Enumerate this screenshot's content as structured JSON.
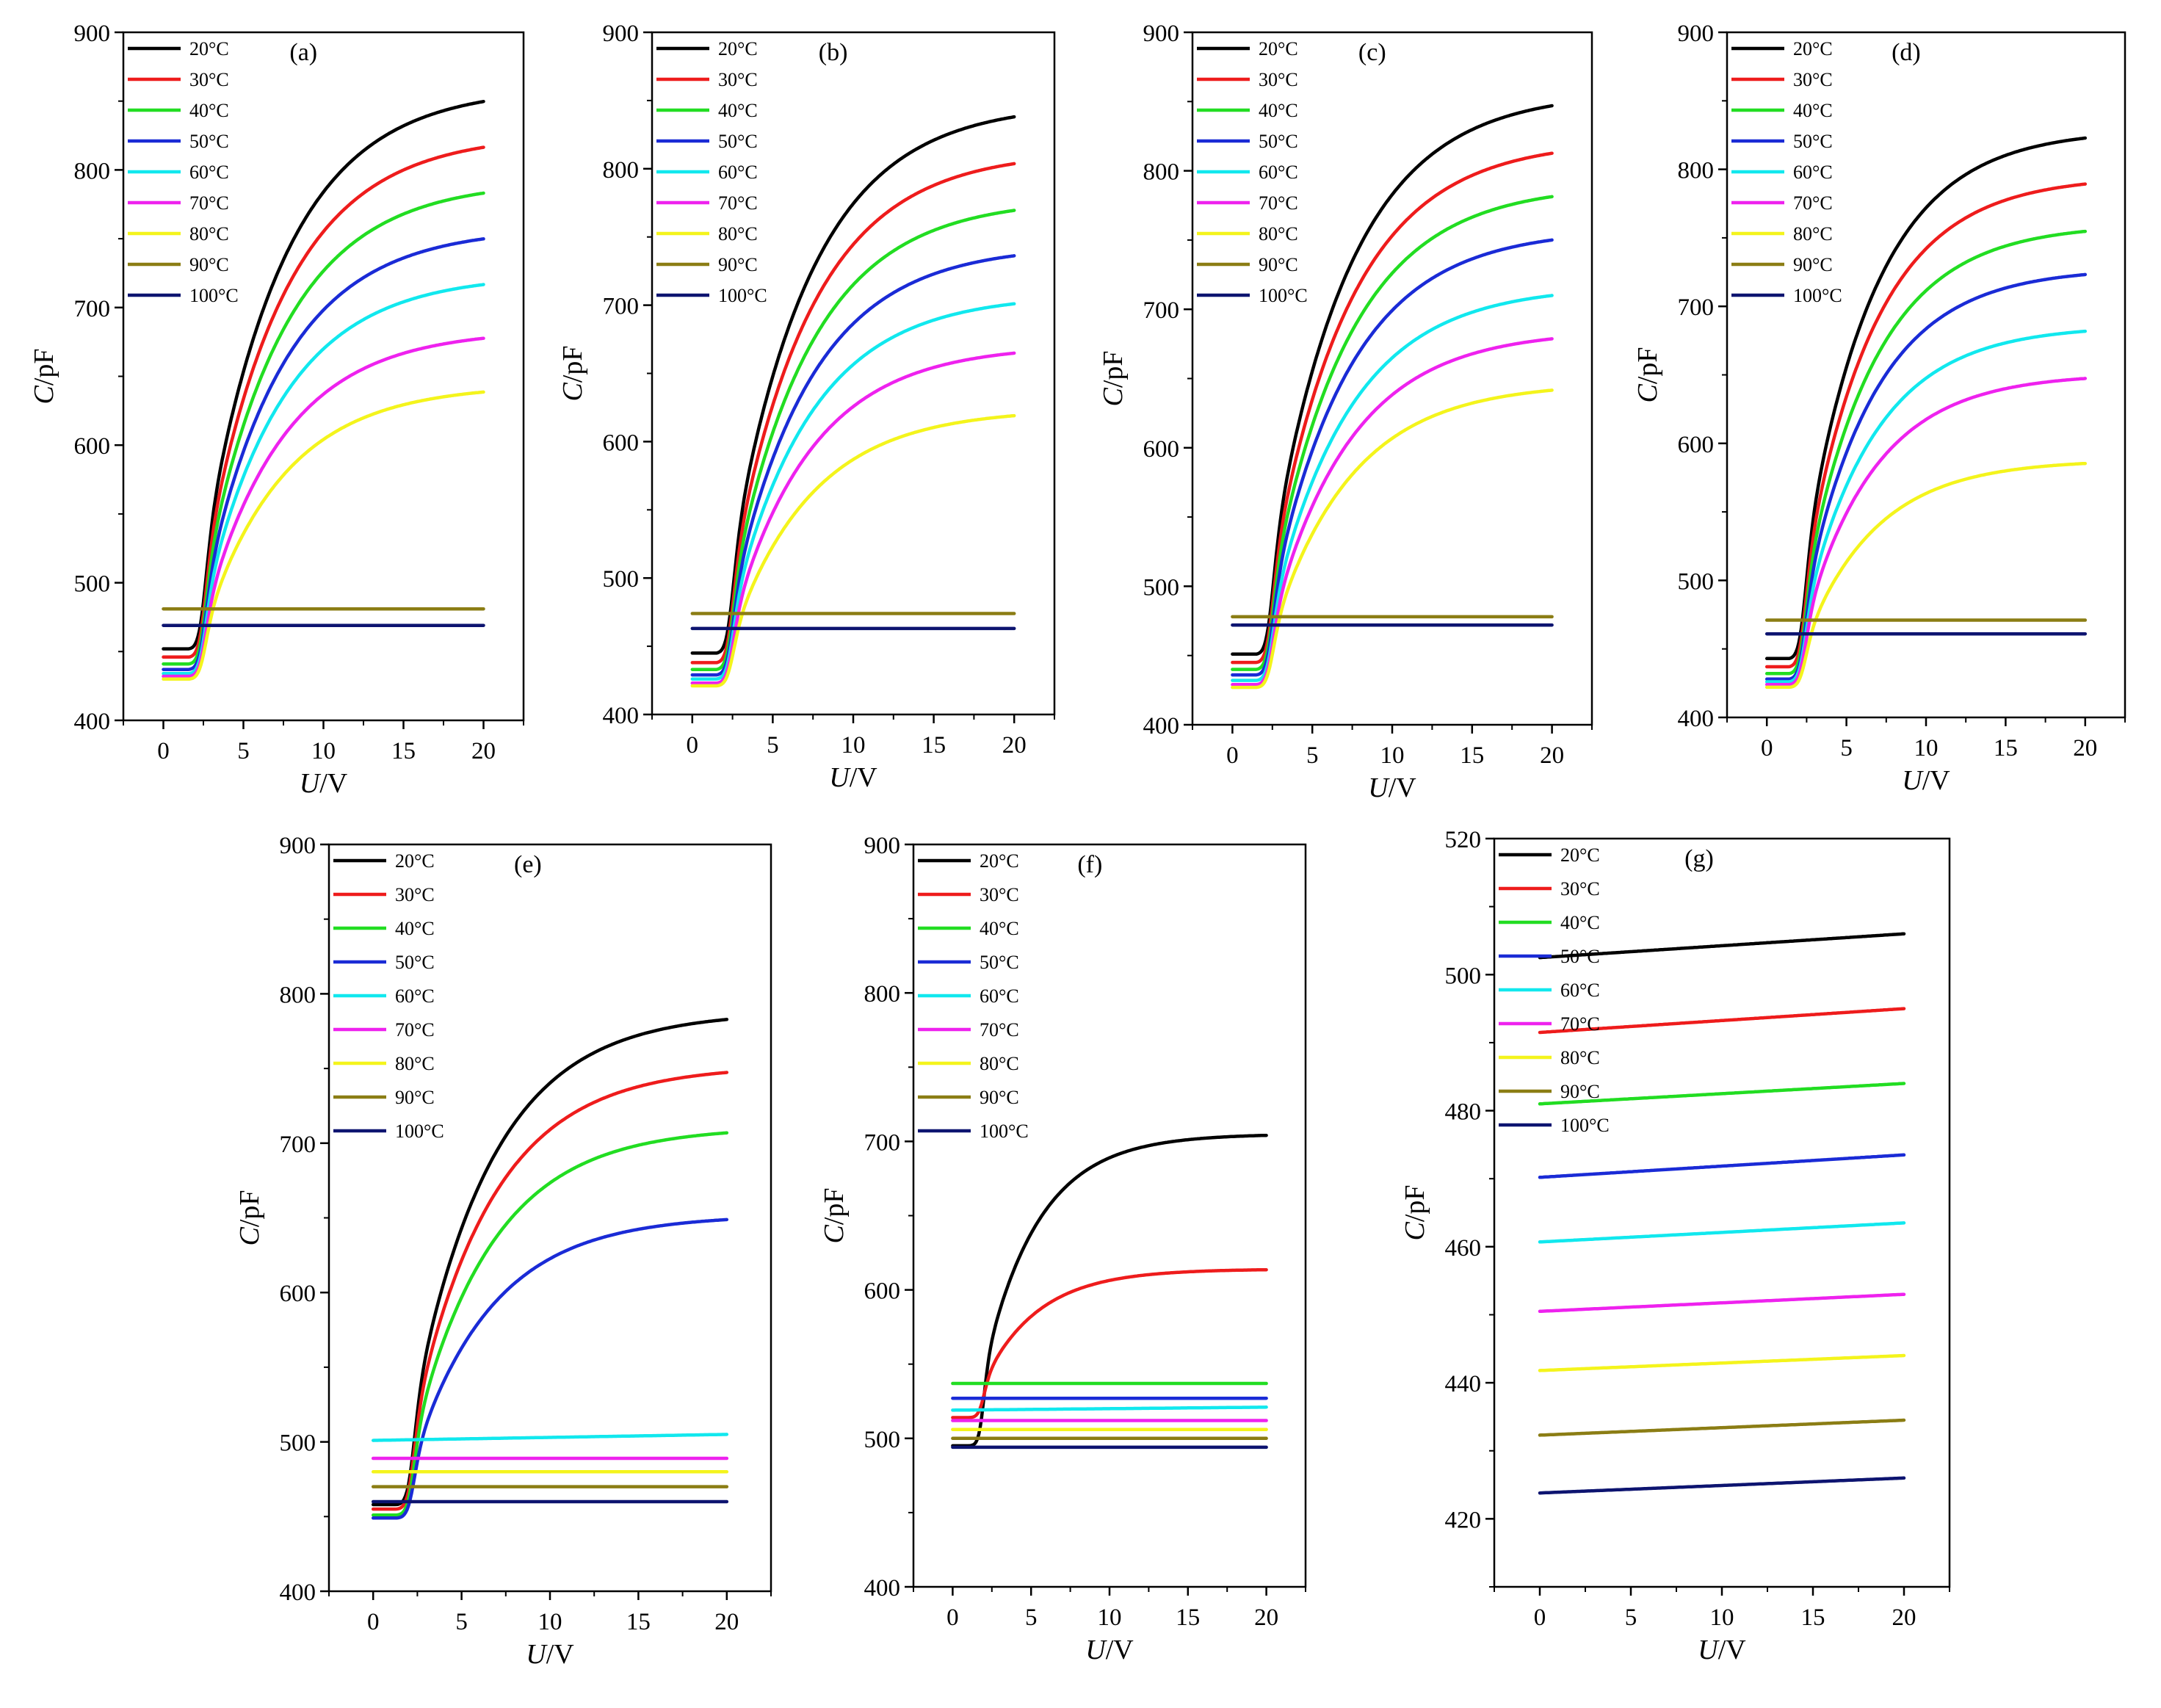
{
  "figure": {
    "legend_entries": [
      "20°C",
      "30°C",
      "40°C",
      "50°C",
      "60°C",
      "70°C",
      "80°C",
      "90°C",
      "100°C"
    ],
    "series_colors": [
      "#000000",
      "#ee1c1c",
      "#22dd22",
      "#1a2bd6",
      "#11e8ee",
      "#ee22ee",
      "#f4f41c",
      "#8b7d14",
      "#0d1470"
    ]
  },
  "chart_data": [
    {
      "id": "a",
      "type": "line",
      "title": "(a)",
      "xlabel_italic": "U",
      "xlabel_unit": "/V",
      "ylabel_italic": "C",
      "ylabel_unit": "/pF",
      "xlim": [
        -2.5,
        22.5
      ],
      "xticks": [
        0,
        5,
        10,
        15,
        20
      ],
      "ylim": [
        400,
        900
      ],
      "yticks": [
        400,
        500,
        600,
        700,
        800,
        900
      ],
      "x_range": [
        0,
        20
      ],
      "series": [
        {
          "name": "20°C",
          "model": "cv",
          "low": 452,
          "sat": 860,
          "v0": 2.5,
          "w": 0.25,
          "tau": 5.0
        },
        {
          "name": "30°C",
          "model": "cv",
          "low": 446,
          "sat": 826,
          "v0": 2.5,
          "w": 0.25,
          "tau": 5.0
        },
        {
          "name": "40°C",
          "model": "cv",
          "low": 441,
          "sat": 792,
          "v0": 2.5,
          "w": 0.25,
          "tau": 5.0
        },
        {
          "name": "50°C",
          "model": "cv",
          "low": 437,
          "sat": 758,
          "v0": 2.5,
          "w": 0.25,
          "tau": 5.0
        },
        {
          "name": "60°C",
          "model": "cv",
          "low": 434,
          "sat": 724,
          "v0": 2.5,
          "w": 0.25,
          "tau": 5.0
        },
        {
          "name": "70°C",
          "model": "cv",
          "low": 432,
          "sat": 684,
          "v0": 2.5,
          "w": 0.25,
          "tau": 5.0
        },
        {
          "name": "80°C",
          "model": "cv",
          "low": 430,
          "sat": 644,
          "v0": 2.5,
          "w": 0.25,
          "tau": 5.0
        },
        {
          "name": "90°C",
          "model": "flat",
          "y0": 481,
          "y1": 481
        },
        {
          "name": "100°C",
          "model": "flat",
          "y0": 469,
          "y1": 469
        }
      ]
    },
    {
      "id": "b",
      "type": "line",
      "title": "(b)",
      "xlabel_italic": "U",
      "xlabel_unit": "/V",
      "ylabel_italic": "C",
      "ylabel_unit": "/pF",
      "xlim": [
        -2.5,
        22.5
      ],
      "xticks": [
        0,
        5,
        10,
        15,
        20
      ],
      "ylim": [
        400,
        900
      ],
      "yticks": [
        400,
        500,
        600,
        700,
        800,
        900
      ],
      "x_range": [
        0,
        20
      ],
      "series": [
        {
          "name": "20°C",
          "model": "cv",
          "low": 445,
          "sat": 848,
          "v0": 2.4,
          "w": 0.25,
          "tau": 5.0
        },
        {
          "name": "30°C",
          "model": "cv",
          "low": 438,
          "sat": 813,
          "v0": 2.4,
          "w": 0.25,
          "tau": 5.0
        },
        {
          "name": "40°C",
          "model": "cv",
          "low": 433,
          "sat": 778,
          "v0": 2.4,
          "w": 0.25,
          "tau": 5.0
        },
        {
          "name": "50°C",
          "model": "cv",
          "low": 429,
          "sat": 744,
          "v0": 2.4,
          "w": 0.25,
          "tau": 5.0
        },
        {
          "name": "60°C",
          "model": "cv",
          "low": 426,
          "sat": 708,
          "v0": 2.4,
          "w": 0.25,
          "tau": 5.0
        },
        {
          "name": "70°C",
          "model": "cv",
          "low": 423,
          "sat": 671,
          "v0": 2.4,
          "w": 0.25,
          "tau": 5.0
        },
        {
          "name": "80°C",
          "model": "cv",
          "low": 421,
          "sat": 624,
          "v0": 2.4,
          "w": 0.25,
          "tau": 5.0
        },
        {
          "name": "90°C",
          "model": "flat",
          "y0": 474,
          "y1": 474
        },
        {
          "name": "100°C",
          "model": "flat",
          "y0": 463,
          "y1": 463
        }
      ]
    },
    {
      "id": "c",
      "type": "line",
      "title": "(c)",
      "xlabel_italic": "U",
      "xlabel_unit": "/V",
      "ylabel_italic": "C",
      "ylabel_unit": "/pF",
      "xlim": [
        -2.5,
        22.5
      ],
      "xticks": [
        0,
        5,
        10,
        15,
        20
      ],
      "ylim": [
        400,
        900
      ],
      "yticks": [
        400,
        500,
        600,
        700,
        800,
        900
      ],
      "x_range": [
        0,
        20
      ],
      "series": [
        {
          "name": "20°C",
          "model": "cv",
          "low": 451,
          "sat": 857,
          "v0": 2.4,
          "w": 0.25,
          "tau": 5.0
        },
        {
          "name": "30°C",
          "model": "cv",
          "low": 445,
          "sat": 822,
          "v0": 2.4,
          "w": 0.25,
          "tau": 5.0
        },
        {
          "name": "40°C",
          "model": "cv",
          "low": 440,
          "sat": 790,
          "v0": 2.4,
          "w": 0.25,
          "tau": 5.0
        },
        {
          "name": "50°C",
          "model": "cv",
          "low": 436,
          "sat": 758,
          "v0": 2.4,
          "w": 0.25,
          "tau": 5.0
        },
        {
          "name": "60°C",
          "model": "cv",
          "low": 432,
          "sat": 717,
          "v0": 2.4,
          "w": 0.25,
          "tau": 5.0
        },
        {
          "name": "70°C",
          "model": "cv",
          "low": 429,
          "sat": 685,
          "v0": 2.4,
          "w": 0.25,
          "tau": 5.0
        },
        {
          "name": "80°C",
          "model": "cv",
          "low": 427,
          "sat": 647,
          "v0": 2.4,
          "w": 0.25,
          "tau": 5.0
        },
        {
          "name": "90°C",
          "model": "flat",
          "y0": 478,
          "y1": 478
        },
        {
          "name": "100°C",
          "model": "flat",
          "y0": 472,
          "y1": 472
        }
      ]
    },
    {
      "id": "d",
      "type": "line",
      "title": "(d)",
      "xlabel_italic": "U",
      "xlabel_unit": "/V",
      "ylabel_italic": "C",
      "ylabel_unit": "/pF",
      "xlim": [
        -2.5,
        22.5
      ],
      "xticks": [
        0,
        5,
        10,
        15,
        20
      ],
      "ylim": [
        400,
        900
      ],
      "yticks": [
        400,
        500,
        600,
        700,
        800,
        900
      ],
      "x_range": [
        0,
        20
      ],
      "series": [
        {
          "name": "20°C",
          "model": "cv",
          "low": 443,
          "sat": 829,
          "v0": 2.3,
          "w": 0.25,
          "tau": 4.5
        },
        {
          "name": "30°C",
          "model": "cv",
          "low": 437,
          "sat": 795,
          "v0": 2.3,
          "w": 0.25,
          "tau": 4.5
        },
        {
          "name": "40°C",
          "model": "cv",
          "low": 432,
          "sat": 760,
          "v0": 2.3,
          "w": 0.25,
          "tau": 4.5
        },
        {
          "name": "50°C",
          "model": "cv",
          "low": 428,
          "sat": 728,
          "v0": 2.3,
          "w": 0.25,
          "tau": 4.5
        },
        {
          "name": "60°C",
          "model": "cv",
          "low": 426,
          "sat": 686,
          "v0": 2.3,
          "w": 0.25,
          "tau": 4.5
        },
        {
          "name": "70°C",
          "model": "cv",
          "low": 424,
          "sat": 651,
          "v0": 2.3,
          "w": 0.25,
          "tau": 4.5
        },
        {
          "name": "80°C",
          "model": "cv",
          "low": 422,
          "sat": 588,
          "v0": 2.3,
          "w": 0.25,
          "tau": 4.5
        },
        {
          "name": "90°C",
          "model": "flat",
          "y0": 471,
          "y1": 471
        },
        {
          "name": "100°C",
          "model": "flat",
          "y0": 461,
          "y1": 461
        }
      ]
    },
    {
      "id": "e",
      "type": "line",
      "title": "(e)",
      "xlabel_italic": "U",
      "xlabel_unit": "/V",
      "ylabel_italic": "C",
      "ylabel_unit": "/pF",
      "xlim": [
        -2.5,
        22.5
      ],
      "xticks": [
        0,
        5,
        10,
        15,
        20
      ],
      "ylim": [
        400,
        900
      ],
      "yticks": [
        400,
        500,
        600,
        700,
        800,
        900
      ],
      "x_range": [
        0,
        20
      ],
      "series": [
        {
          "name": "20°C",
          "model": "cv",
          "low": 458,
          "sat": 788,
          "v0": 2.2,
          "w": 0.22,
          "tau": 4.5
        },
        {
          "name": "30°C",
          "model": "cv",
          "low": 455,
          "sat": 752,
          "v0": 2.2,
          "w": 0.22,
          "tau": 4.5
        },
        {
          "name": "40°C",
          "model": "cv",
          "low": 451,
          "sat": 711,
          "v0": 2.2,
          "w": 0.22,
          "tau": 4.5
        },
        {
          "name": "50°C",
          "model": "cv",
          "low": 449,
          "sat": 652,
          "v0": 2.2,
          "w": 0.22,
          "tau": 4.5
        },
        {
          "name": "60°C",
          "model": "flat",
          "y0": 501,
          "y1": 505
        },
        {
          "name": "70°C",
          "model": "flat",
          "y0": 489,
          "y1": 489
        },
        {
          "name": "80°C",
          "model": "flat",
          "y0": 480,
          "y1": 480
        },
        {
          "name": "90°C",
          "model": "flat",
          "y0": 470,
          "y1": 470
        },
        {
          "name": "100°C",
          "model": "flat",
          "y0": 460,
          "y1": 460
        }
      ]
    },
    {
      "id": "f",
      "type": "line",
      "title": "(f)",
      "xlabel_italic": "U",
      "xlabel_unit": "/V",
      "ylabel_italic": "C",
      "ylabel_unit": "/pF",
      "xlim": [
        -2.5,
        22.5
      ],
      "xticks": [
        0,
        5,
        10,
        15,
        20
      ],
      "ylim": [
        400,
        900
      ],
      "yticks": [
        400,
        500,
        600,
        700,
        800,
        900
      ],
      "x_range": [
        0,
        20
      ],
      "series": [
        {
          "name": "20°C",
          "model": "cv",
          "low": 495,
          "sat": 705,
          "v0": 1.9,
          "w": 0.18,
          "tau": 3.5
        },
        {
          "name": "30°C",
          "model": "cv",
          "low": 514,
          "sat": 614,
          "v0": 1.9,
          "w": 0.2,
          "tau": 3.5
        },
        {
          "name": "40°C",
          "model": "flat",
          "y0": 537,
          "y1": 537
        },
        {
          "name": "50°C",
          "model": "flat",
          "y0": 527,
          "y1": 527
        },
        {
          "name": "60°C",
          "model": "flat",
          "y0": 519,
          "y1": 521
        },
        {
          "name": "70°C",
          "model": "flat",
          "y0": 512,
          "y1": 512
        },
        {
          "name": "80°C",
          "model": "flat",
          "y0": 506,
          "y1": 506
        },
        {
          "name": "90°C",
          "model": "flat",
          "y0": 500,
          "y1": 500
        },
        {
          "name": "100°C",
          "model": "flat",
          "y0": 494,
          "y1": 494
        }
      ]
    },
    {
      "id": "g",
      "type": "line",
      "title": "(g)",
      "xlabel_italic": "U",
      "xlabel_unit": "/V",
      "ylabel_italic": "C",
      "ylabel_unit": "/pF",
      "xlim": [
        -2.5,
        22.5
      ],
      "xticks": [
        0,
        5,
        10,
        15,
        20
      ],
      "ylim": [
        410,
        520
      ],
      "yticks": [
        420,
        440,
        460,
        480,
        500,
        520
      ],
      "x_range": [
        0,
        20
      ],
      "series": [
        {
          "name": "20°C",
          "model": "flat",
          "y0": 502.5,
          "y1": 506
        },
        {
          "name": "30°C",
          "model": "flat",
          "y0": 491.5,
          "y1": 495
        },
        {
          "name": "40°C",
          "model": "flat",
          "y0": 481,
          "y1": 484
        },
        {
          "name": "50°C",
          "model": "flat",
          "y0": 470.2,
          "y1": 473.5
        },
        {
          "name": "60°C",
          "model": "flat",
          "y0": 460.7,
          "y1": 463.5
        },
        {
          "name": "70°C",
          "model": "flat",
          "y0": 450.5,
          "y1": 453
        },
        {
          "name": "80°C",
          "model": "flat",
          "y0": 441.8,
          "y1": 444
        },
        {
          "name": "90°C",
          "model": "flat",
          "y0": 432.3,
          "y1": 434.5
        },
        {
          "name": "100°C",
          "model": "flat",
          "y0": 423.8,
          "y1": 426
        }
      ]
    }
  ]
}
